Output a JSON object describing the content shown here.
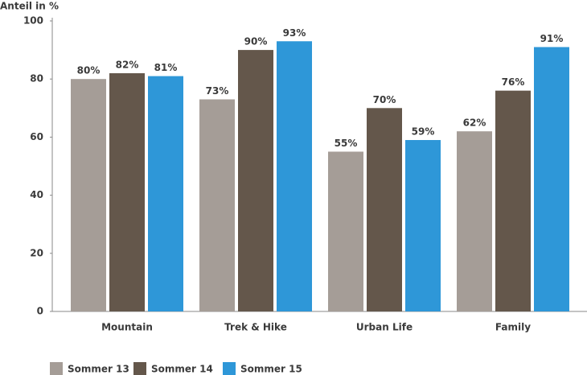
{
  "chart_data": {
    "type": "bar",
    "y_label": "Anteil in %",
    "categories": [
      "Mountain",
      "Trek & Hike",
      "Urban Life",
      "Family"
    ],
    "series": [
      {
        "name": "Sommer 13",
        "color": "#a59d97",
        "values": [
          80,
          73,
          55,
          62
        ],
        "value_labels": [
          "80%",
          "73%",
          "55%",
          "62%"
        ]
      },
      {
        "name": "Sommer 14",
        "color": "#64574b",
        "values": [
          82,
          90,
          70,
          76
        ],
        "value_labels": [
          "82%",
          "90%",
          "70%",
          "76%"
        ]
      },
      {
        "name": "Sommer 15",
        "color": "#2e97d8",
        "values": [
          81,
          93,
          59,
          91
        ],
        "value_labels": [
          "81%",
          "93%",
          "59%",
          "91%"
        ]
      }
    ],
    "ylim": [
      0,
      100
    ],
    "yticks": [
      0,
      20,
      40,
      60,
      80,
      100
    ],
    "grid": false,
    "legend": "bottom"
  }
}
